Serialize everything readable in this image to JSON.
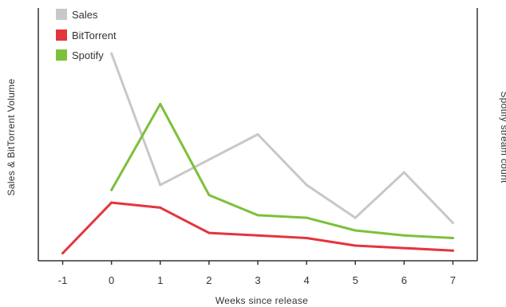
{
  "chart_data": {
    "type": "line",
    "xlabel": "Weeks since release",
    "ylabel_left": "Sales & BitTorrent Volume",
    "ylabel_right": "Spotify stream count",
    "x_ticks": [
      -1,
      0,
      1,
      2,
      3,
      4,
      5,
      6,
      7
    ],
    "xlim": [
      -1.5,
      7.5
    ],
    "ylim": [
      0,
      100
    ],
    "grid": false,
    "legend_position": "top-left",
    "series": [
      {
        "name": "Sales",
        "color": "#c8c8c8",
        "x": [
          0,
          1,
          2,
          3,
          4,
          5,
          6,
          7
        ],
        "values": [
          82,
          30,
          40,
          50,
          30,
          17,
          35,
          15
        ]
      },
      {
        "name": "BitTorrent",
        "color": "#e3353d",
        "x": [
          -1,
          0,
          1,
          2,
          3,
          4,
          5,
          6,
          7
        ],
        "values": [
          3,
          23,
          21,
          11,
          10,
          9,
          6,
          5,
          4
        ]
      },
      {
        "name": "Spotify",
        "color": "#7dc03b",
        "x": [
          0,
          1,
          2,
          3,
          4,
          5,
          6,
          7
        ],
        "values": [
          28,
          62,
          26,
          18,
          17,
          12,
          10,
          9
        ]
      }
    ]
  }
}
